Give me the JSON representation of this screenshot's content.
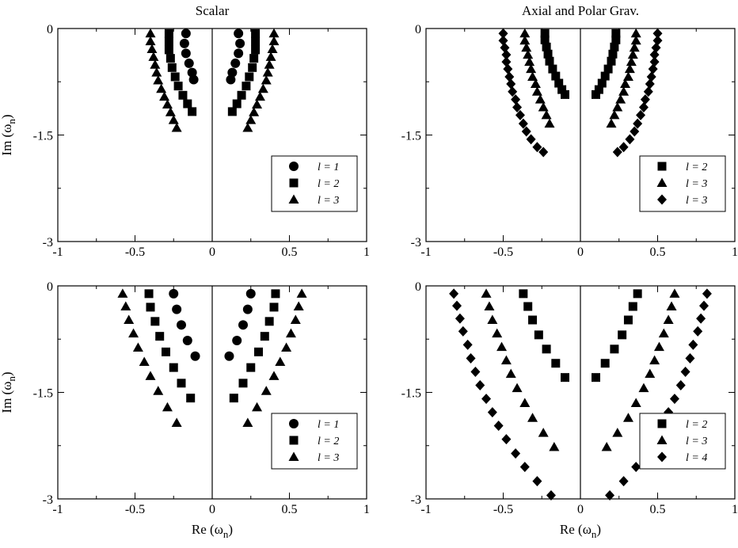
{
  "chart_data": [
    {
      "type": "scatter",
      "title": "Scalar",
      "xlabel": "",
      "ylabel": "Im (ω",
      "ylabel_sub": "n",
      "ylabel_close": ")",
      "xlim": [
        -1,
        1
      ],
      "ylim": [
        -3,
        0
      ],
      "xticks": [
        "-1",
        "-0.5",
        "0",
        "0.5",
        "1"
      ],
      "yticks": [
        "0",
        "-1.5",
        "-3"
      ],
      "grid": false,
      "legend_position": "bottom-right",
      "series": [
        {
          "name": "l = 1",
          "marker": "circle",
          "points": [
            [
              0.17,
              -0.07
            ],
            [
              0.18,
              -0.21
            ],
            [
              0.17,
              -0.35
            ],
            [
              0.15,
              -0.49
            ],
            [
              0.13,
              -0.62
            ],
            [
              0.12,
              -0.72
            ]
          ]
        },
        {
          "name": "l = 2",
          "marker": "square",
          "points": [
            [
              0.28,
              -0.07
            ],
            [
              0.28,
              -0.18
            ],
            [
              0.28,
              -0.3
            ],
            [
              0.27,
              -0.42
            ],
            [
              0.26,
              -0.55
            ],
            [
              0.24,
              -0.68
            ],
            [
              0.22,
              -0.81
            ],
            [
              0.19,
              -0.94
            ],
            [
              0.16,
              -1.06
            ],
            [
              0.13,
              -1.17
            ]
          ]
        },
        {
          "name": "l = 3",
          "marker": "triangle",
          "points": [
            [
              0.4,
              -0.07
            ],
            [
              0.4,
              -0.18
            ],
            [
              0.39,
              -0.29
            ],
            [
              0.38,
              -0.4
            ],
            [
              0.37,
              -0.51
            ],
            [
              0.36,
              -0.62
            ],
            [
              0.35,
              -0.73
            ],
            [
              0.33,
              -0.85
            ],
            [
              0.31,
              -0.96
            ],
            [
              0.29,
              -1.07
            ],
            [
              0.27,
              -1.18
            ],
            [
              0.25,
              -1.29
            ],
            [
              0.23,
              -1.4
            ]
          ]
        }
      ]
    },
    {
      "type": "scatter",
      "title": "Axial and Polar Grav.",
      "xlabel": "",
      "ylabel": "",
      "xlim": [
        -1,
        1
      ],
      "ylim": [
        -3,
        0
      ],
      "xticks": [
        "-1",
        "-0.5",
        "0",
        "0.5",
        "1"
      ],
      "yticks": [
        "0",
        "-1.5",
        "-3"
      ],
      "grid": false,
      "legend_position": "bottom-right",
      "series": [
        {
          "name": "l = 2",
          "marker": "square",
          "points": [
            [
              0.23,
              -0.07
            ],
            [
              0.23,
              -0.16
            ],
            [
              0.22,
              -0.26
            ],
            [
              0.21,
              -0.36
            ],
            [
              0.2,
              -0.46
            ],
            [
              0.18,
              -0.57
            ],
            [
              0.16,
              -0.67
            ],
            [
              0.14,
              -0.77
            ],
            [
              0.12,
              -0.86
            ],
            [
              0.1,
              -0.93
            ]
          ]
        },
        {
          "name": "l = 3",
          "marker": "triangle",
          "points": [
            [
              0.36,
              -0.07
            ],
            [
              0.36,
              -0.17
            ],
            [
              0.35,
              -0.27
            ],
            [
              0.34,
              -0.37
            ],
            [
              0.33,
              -0.47
            ],
            [
              0.32,
              -0.57
            ],
            [
              0.31,
              -0.68
            ],
            [
              0.29,
              -0.78
            ],
            [
              0.28,
              -0.89
            ],
            [
              0.26,
              -1.0
            ],
            [
              0.24,
              -1.11
            ],
            [
              0.22,
              -1.22
            ],
            [
              0.2,
              -1.34
            ]
          ]
        },
        {
          "name": "l = 3",
          "marker": "diamond",
          "points": [
            [
              0.5,
              -0.07
            ],
            [
              0.5,
              -0.17
            ],
            [
              0.49,
              -0.27
            ],
            [
              0.48,
              -0.37
            ],
            [
              0.48,
              -0.47
            ],
            [
              0.47,
              -0.57
            ],
            [
              0.46,
              -0.68
            ],
            [
              0.45,
              -0.78
            ],
            [
              0.44,
              -0.89
            ],
            [
              0.42,
              -1.0
            ],
            [
              0.41,
              -1.11
            ],
            [
              0.39,
              -1.22
            ],
            [
              0.37,
              -1.34
            ],
            [
              0.35,
              -1.45
            ],
            [
              0.32,
              -1.56
            ],
            [
              0.28,
              -1.67
            ],
            [
              0.24,
              -1.74
            ]
          ]
        }
      ]
    },
    {
      "type": "scatter",
      "title": "",
      "xlabel": "Re (ω",
      "xlabel_sub": "n",
      "xlabel_close": ")",
      "ylabel": "Im (ω",
      "ylabel_sub": "n",
      "ylabel_close": ")",
      "xlim": [
        -1,
        1
      ],
      "ylim": [
        -3,
        0
      ],
      "xticks": [
        "-1",
        "-0.5",
        "0",
        "0.5",
        "1"
      ],
      "yticks": [
        "0",
        "-1.5",
        "-3"
      ],
      "grid": false,
      "legend_position": "bottom-right",
      "series": [
        {
          "name": "l = 1",
          "marker": "circle",
          "points": [
            [
              0.25,
              -0.11
            ],
            [
              0.23,
              -0.33
            ],
            [
              0.2,
              -0.55
            ],
            [
              0.16,
              -0.77
            ],
            [
              0.11,
              -0.99
            ]
          ]
        },
        {
          "name": "l = 2",
          "marker": "square",
          "points": [
            [
              0.41,
              -0.11
            ],
            [
              0.4,
              -0.3
            ],
            [
              0.37,
              -0.5
            ],
            [
              0.34,
              -0.71
            ],
            [
              0.3,
              -0.93
            ],
            [
              0.25,
              -1.15
            ],
            [
              0.2,
              -1.37
            ],
            [
              0.14,
              -1.58
            ]
          ]
        },
        {
          "name": "l = 3",
          "marker": "triangle",
          "points": [
            [
              0.58,
              -0.11
            ],
            [
              0.56,
              -0.29
            ],
            [
              0.54,
              -0.48
            ],
            [
              0.51,
              -0.67
            ],
            [
              0.48,
              -0.87
            ],
            [
              0.44,
              -1.07
            ],
            [
              0.4,
              -1.27
            ],
            [
              0.35,
              -1.48
            ],
            [
              0.29,
              -1.71
            ],
            [
              0.23,
              -1.93
            ]
          ]
        }
      ]
    },
    {
      "type": "scatter",
      "title": "",
      "xlabel": "Re (ω",
      "xlabel_sub": "n",
      "xlabel_close": ")",
      "ylabel": "",
      "xlim": [
        -1,
        1
      ],
      "ylim": [
        -3,
        0
      ],
      "xticks": [
        "-1",
        "-0.5",
        "0",
        "0.5",
        "1"
      ],
      "yticks": [
        "0",
        "-1.5",
        "-3"
      ],
      "grid": false,
      "legend_position": "bottom-right",
      "series": [
        {
          "name": "l = 2",
          "marker": "square",
          "points": [
            [
              0.37,
              -0.11
            ],
            [
              0.34,
              -0.29
            ],
            [
              0.31,
              -0.48
            ],
            [
              0.27,
              -0.69
            ],
            [
              0.22,
              -0.89
            ],
            [
              0.16,
              -1.09
            ],
            [
              0.1,
              -1.29
            ]
          ]
        },
        {
          "name": "l = 3",
          "marker": "triangle",
          "points": [
            [
              0.61,
              -0.11
            ],
            [
              0.59,
              -0.29
            ],
            [
              0.57,
              -0.48
            ],
            [
              0.54,
              -0.67
            ],
            [
              0.51,
              -0.86
            ],
            [
              0.48,
              -1.05
            ],
            [
              0.45,
              -1.24
            ],
            [
              0.41,
              -1.44
            ],
            [
              0.36,
              -1.65
            ],
            [
              0.31,
              -1.86
            ],
            [
              0.24,
              -2.07
            ],
            [
              0.17,
              -2.27
            ]
          ]
        },
        {
          "name": "l = 4",
          "marker": "diamond",
          "points": [
            [
              0.82,
              -0.11
            ],
            [
              0.8,
              -0.28
            ],
            [
              0.78,
              -0.46
            ],
            [
              0.76,
              -0.64
            ],
            [
              0.73,
              -0.83
            ],
            [
              0.71,
              -1.02
            ],
            [
              0.68,
              -1.21
            ],
            [
              0.65,
              -1.4
            ],
            [
              0.61,
              -1.59
            ],
            [
              0.57,
              -1.78
            ],
            [
              0.53,
              -1.97
            ],
            [
              0.48,
              -2.16
            ],
            [
              0.42,
              -2.36
            ],
            [
              0.36,
              -2.55
            ],
            [
              0.28,
              -2.75
            ],
            [
              0.19,
              -2.95
            ]
          ]
        }
      ]
    }
  ]
}
